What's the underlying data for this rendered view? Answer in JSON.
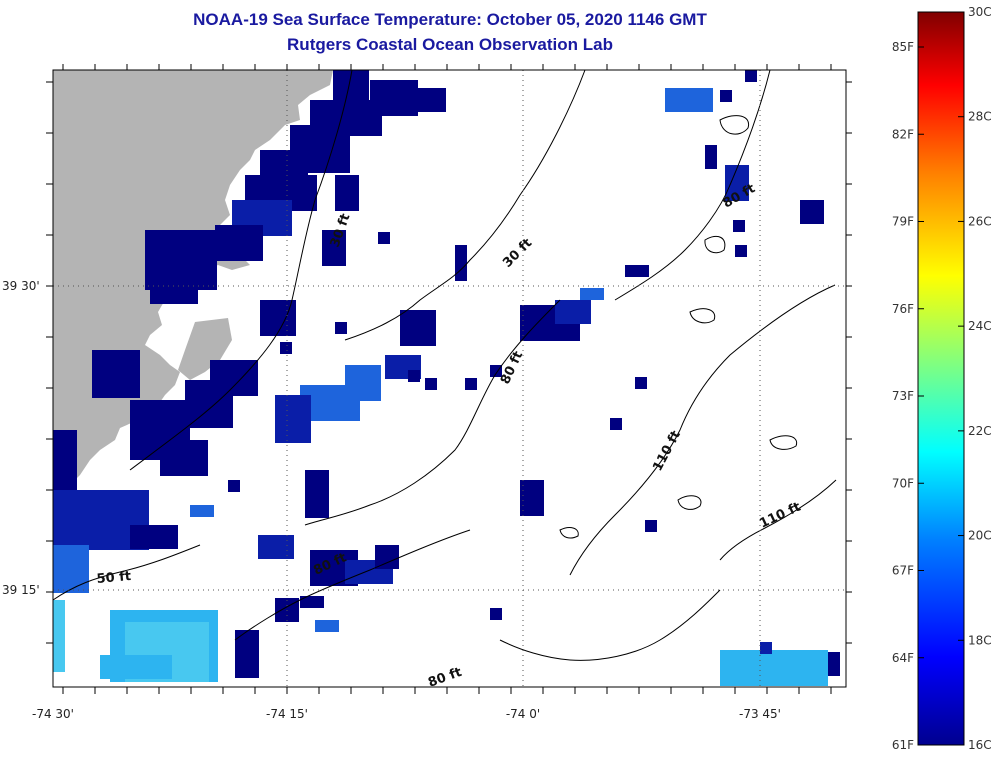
{
  "title": "NOAA-19 Sea Surface Temperature:  October 05, 2020 1146 GMT",
  "subtitle": "Rutgers Coastal Ocean Observation Lab",
  "map": {
    "lon_labels": [
      "-74 30'",
      "-74 15'",
      "-74 0'",
      "-73 45'"
    ],
    "lat_labels": [
      "39 30'",
      "39 15'"
    ],
    "land_color": "#b4b4b4",
    "contour_labels": [
      "30 ft",
      "30 ft",
      "80 ft",
      "80 ft",
      "80 ft",
      "80 ft",
      "110 ft",
      "110 ft",
      "50 ft"
    ],
    "sst_palette": [
      "#000080",
      "#0a1ea8",
      "#1e64dc",
      "#2db4f0",
      "#48c8f0"
    ]
  },
  "colorbar": {
    "celsius_labels": [
      "30C",
      "28C",
      "26C",
      "24C",
      "22C",
      "20C",
      "18C",
      "16C"
    ],
    "fahrenheit_labels": [
      "85F",
      "82F",
      "79F",
      "76F",
      "73F",
      "70F",
      "67F",
      "64F",
      "61F"
    ],
    "range_c": [
      16,
      30
    ]
  }
}
